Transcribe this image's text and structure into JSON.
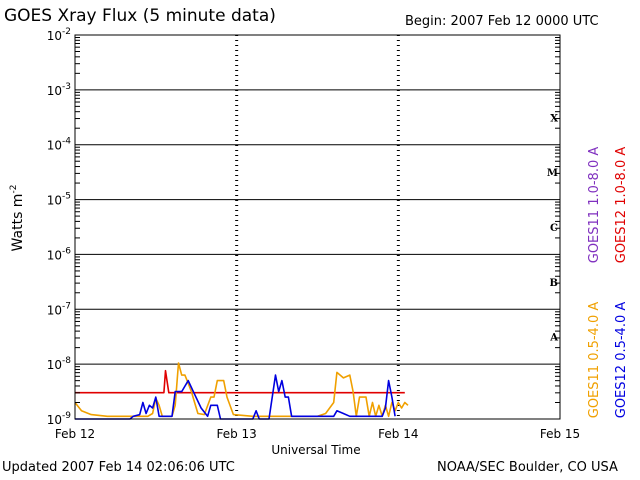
{
  "header": {
    "title": "GOES Xray Flux (5 minute data)",
    "begin": "Begin:  2007 Feb 12 0000 UTC"
  },
  "footer": {
    "updated": "Updated 2007 Feb 14 02:06:06 UTC",
    "credit": "NOAA/SEC Boulder, CO USA"
  },
  "colors": {
    "goes11_long": "#7f2fbf",
    "goes12_long": "#e00000",
    "goes11_short": "#f0a000",
    "goes12_short": "#0000e0"
  },
  "chart_data": {
    "type": "line",
    "title": "GOES Xray Flux (5 minute data)",
    "xlabel": "Universal Time",
    "ylabel": "Watts m",
    "ylabel_sup": "-2",
    "y_scale": "log",
    "ylim": [
      1e-09,
      0.01
    ],
    "xlim": [
      0,
      3
    ],
    "x_ticks": [
      {
        "x": 0,
        "label": "Feb 12"
      },
      {
        "x": 1,
        "label": "Feb 13"
      },
      {
        "x": 2,
        "label": "Feb 14"
      },
      {
        "x": 3,
        "label": "Feb 15"
      }
    ],
    "y_ticks": [
      {
        "v": -9,
        "base": "10",
        "exp": "-9"
      },
      {
        "v": -8,
        "base": "10",
        "exp": "-8"
      },
      {
        "v": -7,
        "base": "10",
        "exp": "-7"
      },
      {
        "v": -6,
        "base": "10",
        "exp": "-6"
      },
      {
        "v": -5,
        "base": "10",
        "exp": "-5"
      },
      {
        "v": -4,
        "base": "10",
        "exp": "-4"
      },
      {
        "v": -3,
        "base": "10",
        "exp": "-3"
      },
      {
        "v": -2,
        "base": "10",
        "exp": "-2"
      }
    ],
    "flare_classes": [
      {
        "label": "A",
        "v": -7.5
      },
      {
        "label": "B",
        "v": -6.5
      },
      {
        "label": "C",
        "v": -5.5
      },
      {
        "label": "M",
        "v": -4.5
      },
      {
        "label": "X",
        "v": -3.5
      }
    ],
    "legend": [
      {
        "name": "GOES11 1.0-8.0 A",
        "color": "#7f2fbf"
      },
      {
        "name": "GOES12 1.0-8.0 A",
        "color": "#e00000"
      },
      {
        "name": "GOES11 0.5-4.0 A",
        "color": "#f0a000"
      },
      {
        "name": "GOES12 0.5-4.0 A",
        "color": "#0000e0"
      }
    ],
    "series": [
      {
        "name": "GOES12 1.0-8.0 A",
        "color": "#e00000",
        "points": [
          [
            0,
            -8.52
          ],
          [
            0.1,
            -8.52
          ],
          [
            0.5,
            -8.52
          ],
          [
            0.5,
            -8.52
          ],
          [
            0.55,
            -8.52
          ],
          [
            0.56,
            -8.12
          ],
          [
            0.58,
            -8.52
          ],
          [
            1,
            -8.52
          ],
          [
            1.5,
            -8.52
          ],
          [
            2.04,
            -8.52
          ]
        ]
      },
      {
        "name": "GOES11 0.5-4.0 A",
        "color": "#f0a000",
        "points": [
          [
            0,
            -8.7
          ],
          [
            0.04,
            -8.85
          ],
          [
            0.1,
            -8.92
          ],
          [
            0.2,
            -8.95
          ],
          [
            0.36,
            -8.95
          ],
          [
            0.45,
            -8.95
          ],
          [
            0.48,
            -8.9
          ],
          [
            0.5,
            -8.62
          ],
          [
            0.52,
            -8.75
          ],
          [
            0.54,
            -8.95
          ],
          [
            0.6,
            -8.95
          ],
          [
            0.62,
            -8.75
          ],
          [
            0.64,
            -7.98
          ],
          [
            0.66,
            -8.2
          ],
          [
            0.68,
            -8.2
          ],
          [
            0.7,
            -8.35
          ],
          [
            0.72,
            -8.5
          ],
          [
            0.74,
            -8.7
          ],
          [
            0.76,
            -8.9
          ],
          [
            0.8,
            -8.92
          ],
          [
            0.84,
            -8.6
          ],
          [
            0.86,
            -8.6
          ],
          [
            0.88,
            -8.3
          ],
          [
            0.92,
            -8.3
          ],
          [
            0.94,
            -8.6
          ],
          [
            0.98,
            -8.92
          ],
          [
            1.1,
            -8.95
          ],
          [
            1.2,
            -8.95
          ],
          [
            1.5,
            -8.95
          ],
          [
            1.55,
            -8.9
          ],
          [
            1.6,
            -8.7
          ],
          [
            1.62,
            -8.15
          ],
          [
            1.66,
            -8.25
          ],
          [
            1.7,
            -8.2
          ],
          [
            1.72,
            -8.5
          ],
          [
            1.74,
            -8.95
          ],
          [
            1.76,
            -8.6
          ],
          [
            1.8,
            -8.6
          ],
          [
            1.82,
            -8.95
          ],
          [
            1.84,
            -8.7
          ],
          [
            1.86,
            -8.95
          ],
          [
            1.88,
            -8.75
          ],
          [
            1.9,
            -8.95
          ],
          [
            1.92,
            -8.75
          ],
          [
            1.94,
            -8.95
          ],
          [
            1.96,
            -8.7
          ],
          [
            1.98,
            -8.85
          ],
          [
            2.0,
            -8.7
          ],
          [
            2.02,
            -8.8
          ],
          [
            2.04,
            -8.7
          ],
          [
            2.06,
            -8.75
          ]
        ]
      },
      {
        "name": "GOES12 0.5-4.0 A",
        "color": "#0000e0",
        "points": [
          [
            0,
            -9
          ],
          [
            0.2,
            -9
          ],
          [
            0.34,
            -9
          ],
          [
            0.36,
            -8.95
          ],
          [
            0.4,
            -8.92
          ],
          [
            0.42,
            -8.7
          ],
          [
            0.44,
            -8.9
          ],
          [
            0.46,
            -8.75
          ],
          [
            0.48,
            -8.8
          ],
          [
            0.5,
            -8.6
          ],
          [
            0.52,
            -8.95
          ],
          [
            0.6,
            -8.95
          ],
          [
            0.62,
            -8.5
          ],
          [
            0.66,
            -8.5
          ],
          [
            0.7,
            -8.3
          ],
          [
            0.74,
            -8.55
          ],
          [
            0.78,
            -8.8
          ],
          [
            0.82,
            -8.95
          ],
          [
            0.84,
            -8.75
          ],
          [
            0.88,
            -8.75
          ],
          [
            0.9,
            -9
          ],
          [
            1.0,
            -9
          ],
          [
            1.1,
            -9
          ],
          [
            1.12,
            -8.85
          ],
          [
            1.14,
            -9
          ],
          [
            1.2,
            -9
          ],
          [
            1.24,
            -8.2
          ],
          [
            1.26,
            -8.5
          ],
          [
            1.28,
            -8.3
          ],
          [
            1.3,
            -8.6
          ],
          [
            1.32,
            -8.6
          ],
          [
            1.34,
            -8.95
          ],
          [
            1.4,
            -8.95
          ],
          [
            1.5,
            -8.95
          ],
          [
            1.55,
            -8.95
          ],
          [
            1.6,
            -8.95
          ],
          [
            1.62,
            -8.85
          ],
          [
            1.66,
            -8.9
          ],
          [
            1.7,
            -8.95
          ],
          [
            1.9,
            -8.95
          ],
          [
            1.92,
            -8.8
          ],
          [
            1.94,
            -8.3
          ],
          [
            1.96,
            -8.6
          ],
          [
            1.98,
            -8.95
          ]
        ]
      }
    ]
  }
}
